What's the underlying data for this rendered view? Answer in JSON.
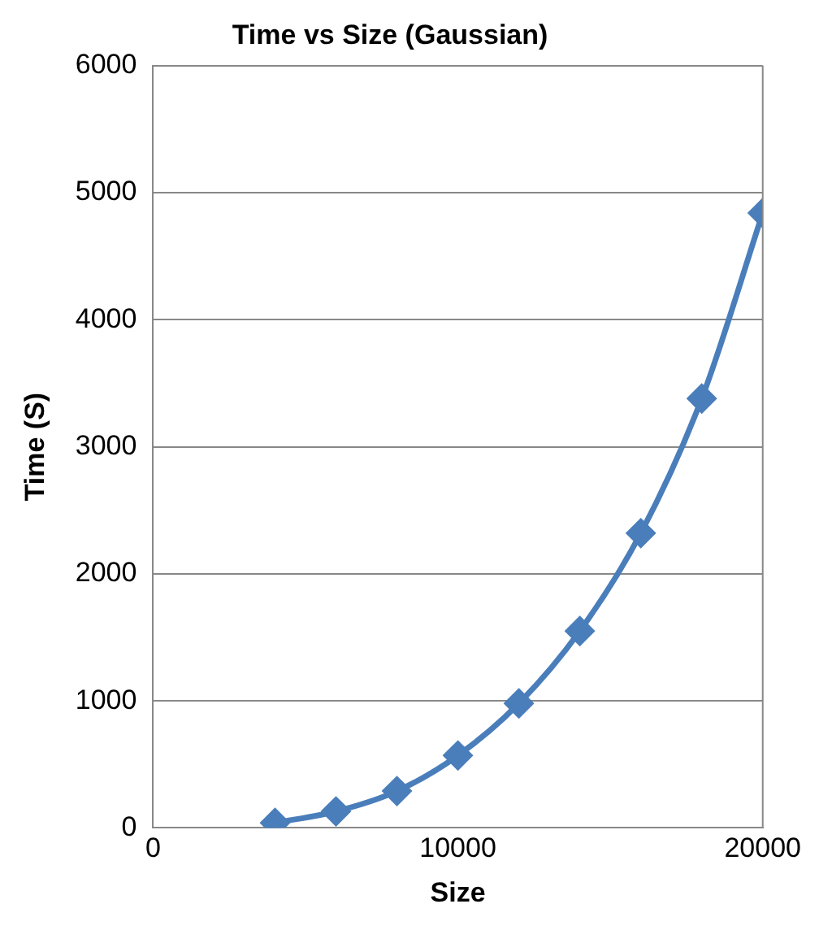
{
  "chart_data": {
    "type": "line",
    "title": "Time vs Size (Gaussian)",
    "xlabel": "Size",
    "ylabel": "Time (S)",
    "x": [
      4000,
      6000,
      8000,
      10000,
      12000,
      14000,
      16000,
      18000,
      20000
    ],
    "series": [
      {
        "color": "#4a7ebb",
        "values": [
          40,
          130,
          290,
          570,
          980,
          1550,
          2320,
          3380,
          4840
        ]
      }
    ],
    "xlim": [
      0,
      20000
    ],
    "xticks": [
      0,
      10000,
      20000
    ],
    "ylim": [
      0,
      6000
    ],
    "yticks": [
      0,
      1000,
      2000,
      3000,
      4000,
      5000,
      6000
    ],
    "grid": "y",
    "marker": "diamond",
    "line_style": "solid",
    "legend": false
  }
}
